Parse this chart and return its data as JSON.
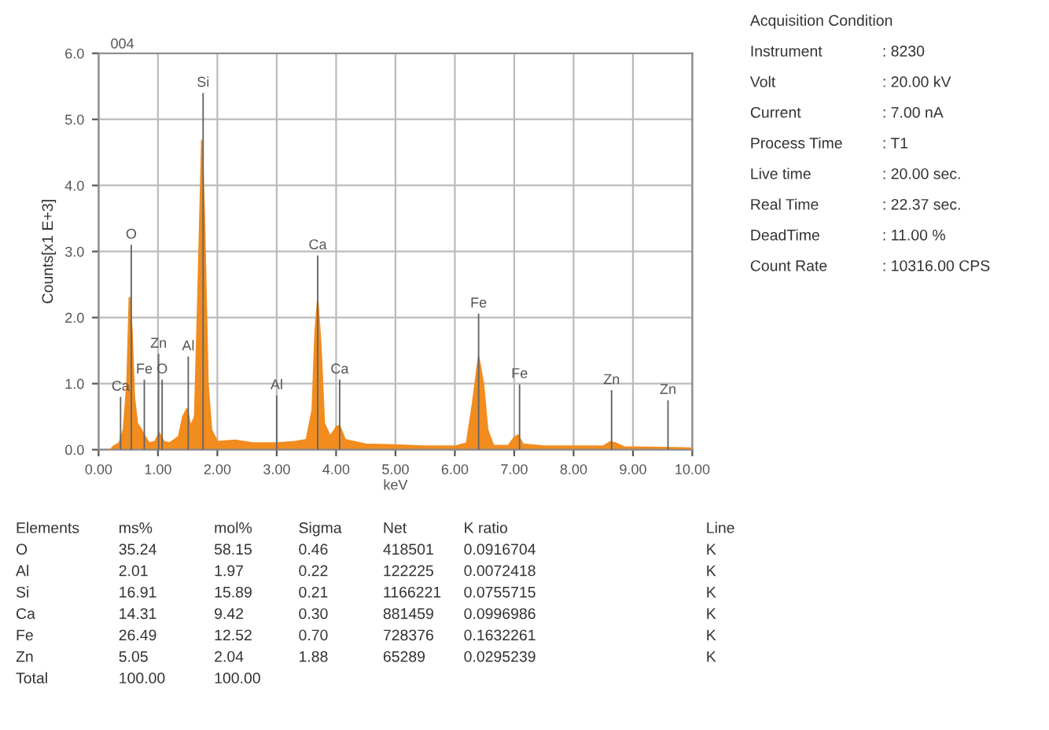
{
  "chart_data": [
    {
      "type": "area",
      "title": "004",
      "xlabel": "keV",
      "ylabel": "Counts[x1 E+3]",
      "x": [
        0.2,
        0.25,
        0.35,
        0.42,
        0.48,
        0.52,
        0.56,
        0.6,
        0.65,
        0.72,
        0.78,
        0.85,
        0.95,
        1.02,
        1.1,
        1.2,
        1.35,
        1.42,
        1.49,
        1.55,
        1.62,
        1.68,
        1.74,
        1.78,
        1.84,
        1.9,
        2.0,
        2.3,
        2.6,
        3.0,
        3.3,
        3.5,
        3.6,
        3.65,
        3.69,
        3.74,
        3.8,
        3.9,
        4.01,
        4.06,
        4.15,
        4.5,
        5.0,
        5.5,
        6.0,
        6.2,
        6.3,
        6.4,
        6.48,
        6.55,
        6.65,
        6.9,
        7.0,
        7.06,
        7.15,
        7.5,
        8.0,
        8.5,
        8.62,
        8.7,
        8.85,
        9.5,
        10.0
      ],
      "series": [
        {
          "color": "#f28c1e",
          "values": [
            0,
            0.05,
            0.1,
            0.3,
            1.0,
            2.3,
            1.8,
            0.8,
            0.4,
            0.3,
            0.2,
            0.1,
            0.12,
            0.25,
            0.12,
            0.1,
            0.2,
            0.5,
            0.62,
            0.35,
            0.5,
            2.5,
            4.68,
            3.5,
            1.0,
            0.3,
            0.12,
            0.14,
            0.1,
            0.1,
            0.12,
            0.15,
            0.6,
            1.8,
            2.25,
            1.6,
            0.4,
            0.2,
            0.35,
            0.36,
            0.15,
            0.08,
            0.07,
            0.05,
            0.05,
            0.1,
            0.7,
            1.4,
            1.0,
            0.3,
            0.06,
            0.06,
            0.18,
            0.22,
            0.08,
            0.05,
            0.05,
            0.05,
            0.12,
            0.1,
            0.04,
            0.03,
            0.02
          ]
        },
        {
          "type": "bar",
          "color": "#666666",
          "x": [
            0.37,
            0.55,
            0.77,
            1.01,
            1.07,
            1.51,
            1.76,
            3.0,
            3.69,
            4.06,
            6.4,
            7.09,
            8.64,
            9.59
          ],
          "values": [
            0.8,
            3.1,
            1.06,
            1.45,
            1.06,
            1.41,
            5.4,
            0.82,
            2.94,
            1.06,
            2.06,
            0.99,
            0.9,
            0.75
          ],
          "value_labels": [
            "Ca",
            "O",
            "Fe",
            "Zn",
            "O",
            "Al",
            "Si",
            "Al",
            "Ca",
            "Ca",
            "Fe",
            "Fe",
            "Zn",
            "Zn"
          ]
        }
      ],
      "xlim": [
        0,
        10
      ],
      "ylim": [
        0,
        6
      ],
      "xticks": [
        {
          "value": 0,
          "label": "0.00"
        },
        {
          "value": 1,
          "label": "1.00"
        },
        {
          "value": 2,
          "label": "2.00"
        },
        {
          "value": 3,
          "label": "3.00"
        },
        {
          "value": 4,
          "label": "4.00"
        },
        {
          "value": 5,
          "label": "5.00"
        },
        {
          "value": 6,
          "label": "6.00"
        },
        {
          "value": 7,
          "label": "7.00"
        },
        {
          "value": 8,
          "label": "8.00"
        },
        {
          "value": 9,
          "label": "9.00"
        },
        {
          "value": 10,
          "label": "10.00"
        }
      ],
      "yticks": [
        {
          "value": 0,
          "label": "0.0"
        },
        {
          "value": 1,
          "label": "1.0"
        },
        {
          "value": 2,
          "label": "2.0"
        },
        {
          "value": 3,
          "label": "3.0"
        },
        {
          "value": 4,
          "label": "4.0"
        },
        {
          "value": 5,
          "label": "5.0"
        },
        {
          "value": 6,
          "label": "6.0"
        }
      ],
      "grid": true
    },
    {
      "type": "other",
      "title": "Acquisition Condition",
      "annotations": [
        "Instrument\t: 8230",
        "Volt\t: 20.00 kV",
        "Current\t: 7.00 nA",
        "Process Time\t: T1",
        "Live time\t: 20.00 sec.",
        "Real Time\t: 22.37 sec.",
        "DeadTime\t: 11.00 %",
        "Count Rate\t: 10316.00 CPS"
      ]
    },
    {
      "type": "other",
      "annotations": [
        "Elements\tms%\tmol%\tSigma\tNet\tK ratio\tLine",
        "O\t35.24\t58.15\t0.46\t418501\t0.0916704\tK",
        "Al\t2.01\t1.97\t0.22\t122225\t0.0072418\tK",
        "Si\t16.91\t15.89\t0.21\t1166221\t0.0755715\tK",
        "Ca\t14.31\t9.42\t0.30\t881459\t0.0996986\tK",
        "Fe\t26.49\t12.52\t0.70\t728376\t0.1632261\tK",
        "Zn\t5.05\t2.04\t1.88\t65289\t0.0295239\tK",
        "Total\t100.00\t100.00"
      ]
    }
  ]
}
